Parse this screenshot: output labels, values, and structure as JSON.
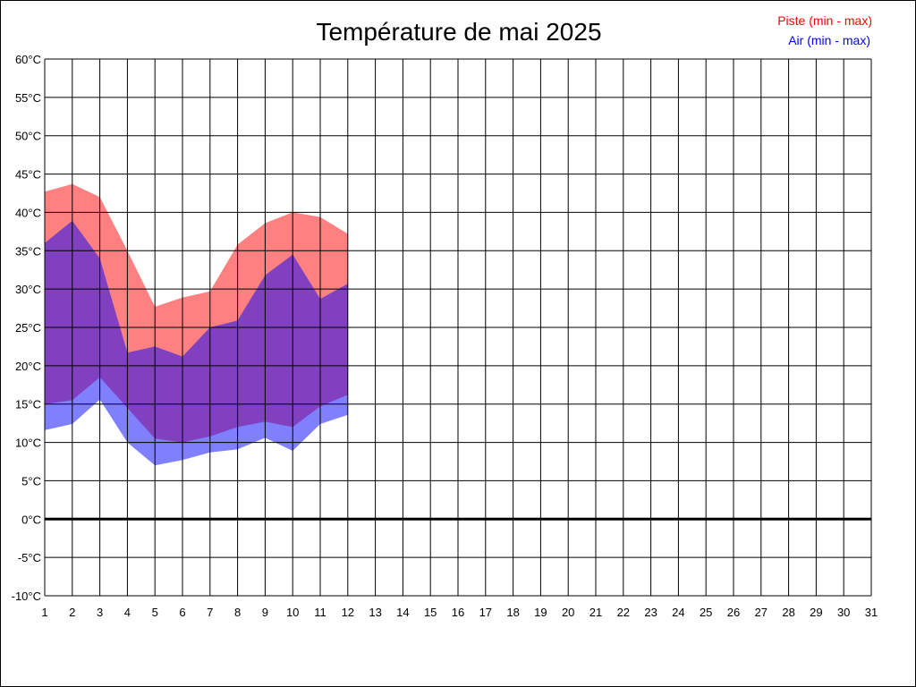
{
  "chart_data": {
    "type": "area",
    "title": "Température de mai 2025",
    "xlabel": "",
    "ylabel": "",
    "x_ticks": [
      "1",
      "2",
      "3",
      "4",
      "5",
      "6",
      "7",
      "8",
      "9",
      "10",
      "11",
      "12",
      "13",
      "14",
      "15",
      "16",
      "17",
      "18",
      "19",
      "20",
      "21",
      "22",
      "23",
      "24",
      "25",
      "26",
      "27",
      "28",
      "29",
      "30",
      "31"
    ],
    "y_ticks": [
      "60°C",
      "55°C",
      "50°C",
      "45°C",
      "40°C",
      "35°C",
      "30°C",
      "25°C",
      "20°C",
      "15°C",
      "10°C",
      "5°C",
      "0°C",
      "-5°C",
      "-10°C"
    ],
    "xlim": [
      1,
      31
    ],
    "ylim": [
      -10,
      60
    ],
    "grid": true,
    "zero_line": true,
    "legend_position": "top-right",
    "x": [
      1,
      2,
      3,
      4,
      5,
      6,
      7,
      8,
      9,
      10,
      11,
      12
    ],
    "series": [
      {
        "name": "Piste (min - max)",
        "color": "#ff0000",
        "fill": "#ff8080",
        "min": [
          15.0,
          15.5,
          18.5,
          14.5,
          10.5,
          10.0,
          10.8,
          12.0,
          12.7,
          12.0,
          14.7,
          16.2
        ],
        "max": [
          42.7,
          43.7,
          42.0,
          35.0,
          27.7,
          28.9,
          29.7,
          35.8,
          38.6,
          40.0,
          39.4,
          37.2
        ]
      },
      {
        "name": "Air (min - max)",
        "color": "#0000ff",
        "fill": "#8080ff",
        "min": [
          11.6,
          12.4,
          15.6,
          10.0,
          7.0,
          7.7,
          8.7,
          9.1,
          10.6,
          8.9,
          12.4,
          13.6
        ],
        "max": [
          36.0,
          38.9,
          34.0,
          21.7,
          22.5,
          21.2,
          25.0,
          25.9,
          31.8,
          34.5,
          28.7,
          30.7
        ]
      }
    ],
    "overlap_fill": "#8040c0"
  }
}
